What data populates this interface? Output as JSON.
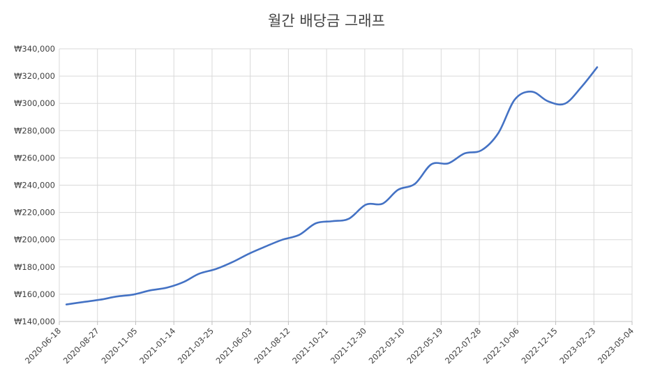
{
  "chart_data": {
    "type": "line",
    "title": "월간 배당금 그래프",
    "xlabel": "",
    "ylabel": "",
    "x_ticks": [
      "2020-06-18",
      "2020-08-27",
      "2020-11-05",
      "2021-01-14",
      "2021-03-25",
      "2021-06-03",
      "2021-08-12",
      "2021-10-21",
      "2021-12-30",
      "2022-03-10",
      "2022-05-19",
      "2022-07-28",
      "2022-10-06",
      "2022-12-15",
      "2023-02-23",
      "2023-05-04"
    ],
    "y_ticks": [
      "₩140,000",
      "₩160,000",
      "₩180,000",
      "₩200,000",
      "₩220,000",
      "₩240,000",
      "₩260,000",
      "₩280,000",
      "₩300,000",
      "₩320,000",
      "₩340,000"
    ],
    "ylim": [
      140000,
      340000
    ],
    "xlim": [
      "2020-06-18",
      "2023-05-04"
    ],
    "grid": true,
    "legend": "none",
    "color": "#4472C4",
    "series": [
      {
        "x": [
          "2020-07-01",
          "2020-08-01",
          "2020-09-01",
          "2020-10-01",
          "2020-11-01",
          "2020-12-01",
          "2021-01-01",
          "2021-02-01",
          "2021-03-01",
          "2021-04-01",
          "2021-05-01",
          "2021-06-01",
          "2021-07-01",
          "2021-08-01",
          "2021-09-01",
          "2021-10-01",
          "2021-11-01",
          "2021-12-01",
          "2022-01-01",
          "2022-02-01",
          "2022-03-01",
          "2022-04-01",
          "2022-05-01",
          "2022-06-01",
          "2022-07-01",
          "2022-08-01",
          "2022-09-01",
          "2022-10-01",
          "2022-11-01",
          "2022-12-01",
          "2023-01-01",
          "2023-02-01",
          "2023-03-01"
        ],
        "values": [
          152500,
          154300,
          156000,
          158300,
          159800,
          162800,
          164800,
          169000,
          175000,
          178500,
          183500,
          189800,
          195000,
          200000,
          203600,
          212000,
          213600,
          215400,
          225700,
          226500,
          236600,
          241000,
          255300,
          256000,
          263300,
          265600,
          278300,
          302800,
          308600,
          301500,
          299800,
          312400,
          326500
        ]
      }
    ]
  }
}
